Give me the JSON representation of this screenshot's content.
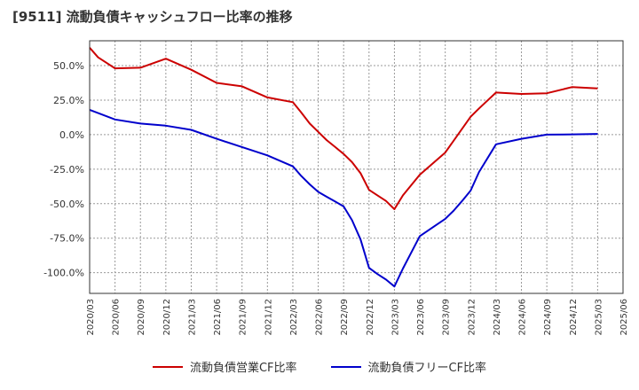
{
  "chart_data": {
    "type": "line",
    "title": "[9511]  流動負債キャッシュフロー比率の推移",
    "xlabel": "",
    "ylabel": "",
    "ylim": [
      -115,
      68
    ],
    "yticks": [
      50,
      25,
      0,
      -25,
      -50,
      -75,
      -100
    ],
    "ytick_labels": [
      "50.0%",
      "25.0%",
      "0.0%",
      "-25.0%",
      "-50.0%",
      "-75.0%",
      "-100.0%"
    ],
    "xticks": [
      "2020/03",
      "2020/06",
      "2020/09",
      "2020/12",
      "2021/03",
      "2021/06",
      "2021/09",
      "2021/12",
      "2022/03",
      "2022/06",
      "2022/09",
      "2022/12",
      "2023/03",
      "2023/06",
      "2023/09",
      "2023/12",
      "2024/03",
      "2024/06",
      "2024/09",
      "2024/12",
      "2025/03",
      "2025/06"
    ],
    "grid": true,
    "legend_position": "bottom",
    "series": [
      {
        "name": "流動負債営業CF比率",
        "color": "#cc0000",
        "points": [
          [
            "2020/03",
            63
          ],
          [
            "2020/04",
            56
          ],
          [
            "2020/06",
            48
          ],
          [
            "2020/09",
            48.5
          ],
          [
            "2020/12",
            55
          ],
          [
            "2021/03",
            47
          ],
          [
            "2021/06",
            37.5
          ],
          [
            "2021/09",
            35
          ],
          [
            "2021/12",
            27
          ],
          [
            "2022/03",
            23.5
          ],
          [
            "2022/04",
            16
          ],
          [
            "2022/05",
            8
          ],
          [
            "2022/06",
            2
          ],
          [
            "2022/07",
            -4
          ],
          [
            "2022/08",
            -9
          ],
          [
            "2022/09",
            -14
          ],
          [
            "2022/10",
            -20
          ],
          [
            "2022/11",
            -28
          ],
          [
            "2022/12",
            -40
          ],
          [
            "2023/01",
            -44
          ],
          [
            "2023/02",
            -48
          ],
          [
            "2023/03",
            -54
          ],
          [
            "2023/04",
            -44
          ],
          [
            "2023/06",
            -29
          ],
          [
            "2023/09",
            -13
          ],
          [
            "2023/12",
            13
          ],
          [
            "2024/01",
            19
          ],
          [
            "2024/03",
            30.5
          ],
          [
            "2024/06",
            29.5
          ],
          [
            "2024/09",
            30
          ],
          [
            "2024/12",
            34.5
          ],
          [
            "2025/03",
            33.5
          ]
        ]
      },
      {
        "name": "流動負債フリーCF比率",
        "color": "#0000cc",
        "points": [
          [
            "2020/03",
            18
          ],
          [
            "2020/06",
            11
          ],
          [
            "2020/09",
            8
          ],
          [
            "2020/12",
            6.5
          ],
          [
            "2021/03",
            3.5
          ],
          [
            "2021/06",
            -3
          ],
          [
            "2021/09",
            -9
          ],
          [
            "2021/12",
            -15
          ],
          [
            "2022/03",
            -23
          ],
          [
            "2022/04",
            -30
          ],
          [
            "2022/05",
            -36
          ],
          [
            "2022/06",
            -41.5
          ],
          [
            "2022/07",
            -45
          ],
          [
            "2022/08",
            -48.5
          ],
          [
            "2022/09",
            -52
          ],
          [
            "2022/10",
            -62
          ],
          [
            "2022/11",
            -76
          ],
          [
            "2022/12",
            -96.5
          ],
          [
            "2023/01",
            -101
          ],
          [
            "2023/02",
            -105
          ],
          [
            "2023/03",
            -110
          ],
          [
            "2023/04",
            -97
          ],
          [
            "2023/06",
            -73.5
          ],
          [
            "2023/09",
            -61
          ],
          [
            "2023/10",
            -55
          ],
          [
            "2023/11",
            -48
          ],
          [
            "2023/12",
            -40.5
          ],
          [
            "2024/01",
            -27
          ],
          [
            "2024/03",
            -7
          ],
          [
            "2024/06",
            -3
          ],
          [
            "2024/09",
            0
          ],
          [
            "2024/12",
            0.2
          ],
          [
            "2025/03",
            0.5
          ]
        ]
      }
    ]
  }
}
